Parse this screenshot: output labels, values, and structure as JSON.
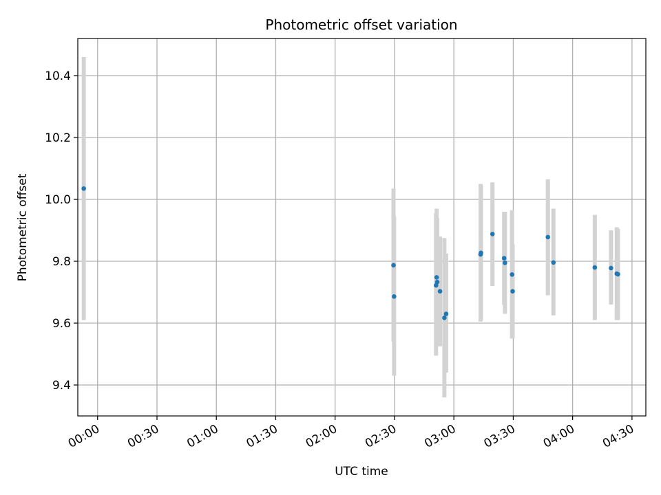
{
  "chart_data": {
    "type": "scatter",
    "title": "Photometric offset variation",
    "xlabel": "UTC time",
    "ylabel": "Photometric offset",
    "x_unit": "UTC time of day",
    "xlim": [
      "23:50",
      "04:37"
    ],
    "ylim": [
      9.3,
      10.52
    ],
    "xticks": [
      "00:00",
      "00:30",
      "01:00",
      "01:30",
      "02:00",
      "02:30",
      "03:00",
      "03:30",
      "04:00",
      "04:30"
    ],
    "yticks": [
      "9.4",
      "9.6",
      "9.8",
      "10.0",
      "10.2",
      "10.4"
    ],
    "grid": true,
    "colors": {
      "marker": "#1f77b4",
      "errorbar": "#d3d3d3",
      "grid": "#b0b0b0"
    },
    "series": [
      {
        "points": [
          {
            "t": "23:53:00",
            "y": 10.035,
            "lo": 9.61,
            "hi": 10.46
          },
          {
            "t": "02:29:30",
            "y": 9.787,
            "lo": 9.54,
            "hi": 10.035
          },
          {
            "t": "02:29:48",
            "y": 9.686,
            "lo": 9.43,
            "hi": 9.945
          },
          {
            "t": "02:51:00",
            "y": 9.722,
            "lo": 9.495,
            "hi": 9.955
          },
          {
            "t": "02:51:18",
            "y": 9.748,
            "lo": 9.53,
            "hi": 9.97
          },
          {
            "t": "02:51:36",
            "y": 9.733,
            "lo": 9.525,
            "hi": 9.94
          },
          {
            "t": "02:53:00",
            "y": 9.703,
            "lo": 9.525,
            "hi": 9.88
          },
          {
            "t": "02:55:12",
            "y": 9.617,
            "lo": 9.36,
            "hi": 9.875
          },
          {
            "t": "02:56:06",
            "y": 9.63,
            "lo": 9.44,
            "hi": 9.825
          },
          {
            "t": "03:13:30",
            "y": 9.822,
            "lo": 9.605,
            "hi": 10.05
          },
          {
            "t": "03:13:42",
            "y": 9.827,
            "lo": 9.61,
            "hi": 10.045
          },
          {
            "t": "03:19:30",
            "y": 9.888,
            "lo": 9.72,
            "hi": 10.055
          },
          {
            "t": "03:25:24",
            "y": 9.81,
            "lo": 9.66,
            "hi": 9.96
          },
          {
            "t": "03:25:48",
            "y": 9.795,
            "lo": 9.63,
            "hi": 9.96
          },
          {
            "t": "03:29:24",
            "y": 9.757,
            "lo": 9.55,
            "hi": 9.965
          },
          {
            "t": "03:29:42",
            "y": 9.703,
            "lo": 9.55,
            "hi": 9.855
          },
          {
            "t": "03:47:30",
            "y": 9.878,
            "lo": 9.69,
            "hi": 10.065
          },
          {
            "t": "03:50:18",
            "y": 9.796,
            "lo": 9.625,
            "hi": 9.97
          },
          {
            "t": "04:11:12",
            "y": 9.78,
            "lo": 9.61,
            "hi": 9.95
          },
          {
            "t": "04:19:24",
            "y": 9.778,
            "lo": 9.66,
            "hi": 9.9
          },
          {
            "t": "04:22:18",
            "y": 9.76,
            "lo": 9.61,
            "hi": 9.91
          },
          {
            "t": "04:22:54",
            "y": 9.758,
            "lo": 9.61,
            "hi": 9.905
          }
        ]
      }
    ]
  }
}
